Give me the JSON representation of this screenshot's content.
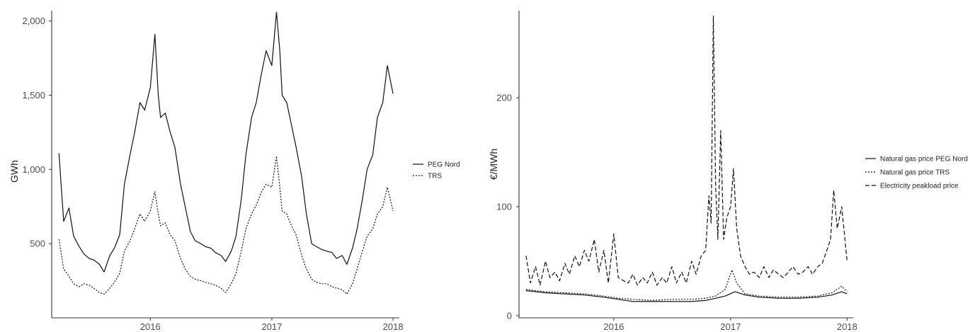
{
  "chart_data": [
    {
      "type": "line",
      "title": "",
      "xlabel": "",
      "ylabel": "GWh",
      "x_ticks": [
        "2016",
        "2017",
        "2018"
      ],
      "y_ticks": [
        "500",
        "1,000",
        "1,500",
        "2,000"
      ],
      "ylim": [
        0,
        2070
      ],
      "xlim": [
        "2015-04-01",
        "2018-01-01"
      ],
      "legend_position": "right",
      "grid": false,
      "series": [
        {
          "name": "PEG Nord",
          "line_style": "solid",
          "x": [
            "2015-04-01",
            "2015-04-15",
            "2015-05-01",
            "2015-05-15",
            "2015-06-01",
            "2015-06-15",
            "2015-07-01",
            "2015-07-15",
            "2015-08-01",
            "2015-08-15",
            "2015-09-01",
            "2015-09-15",
            "2015-10-01",
            "2015-10-15",
            "2015-11-01",
            "2015-11-15",
            "2015-12-01",
            "2015-12-15",
            "2016-01-01",
            "2016-01-15",
            "2016-01-25",
            "2016-02-01",
            "2016-02-15",
            "2016-03-01",
            "2016-03-15",
            "2016-04-01",
            "2016-04-15",
            "2016-05-01",
            "2016-05-15",
            "2016-06-01",
            "2016-06-15",
            "2016-07-01",
            "2016-07-15",
            "2016-08-01",
            "2016-08-15",
            "2016-09-01",
            "2016-09-15",
            "2016-10-01",
            "2016-10-15",
            "2016-11-01",
            "2016-11-15",
            "2016-12-01",
            "2016-12-15",
            "2017-01-01",
            "2017-01-15",
            "2017-01-25",
            "2017-02-01",
            "2017-02-15",
            "2017-03-01",
            "2017-03-15",
            "2017-04-01",
            "2017-04-15",
            "2017-05-01",
            "2017-05-15",
            "2017-06-01",
            "2017-06-15",
            "2017-07-01",
            "2017-07-15",
            "2017-08-01",
            "2017-08-15",
            "2017-09-01",
            "2017-09-15",
            "2017-10-01",
            "2017-10-15",
            "2017-11-01",
            "2017-11-15",
            "2017-12-01",
            "2017-12-15",
            "2018-01-01"
          ],
          "values": [
            1110,
            650,
            740,
            550,
            480,
            430,
            400,
            390,
            360,
            310,
            420,
            470,
            560,
            900,
            1100,
            1250,
            1450,
            1400,
            1550,
            1910,
            1500,
            1350,
            1380,
            1250,
            1150,
            900,
            750,
            580,
            520,
            500,
            480,
            470,
            440,
            420,
            380,
            450,
            550,
            800,
            1100,
            1350,
            1450,
            1650,
            1800,
            1700,
            2060,
            1800,
            1500,
            1450,
            1300,
            1150,
            950,
            700,
            500,
            480,
            460,
            450,
            440,
            400,
            420,
            360,
            470,
            600,
            800,
            1000,
            1100,
            1350,
            1450,
            1700,
            1510
          ]
        },
        {
          "name": "TRS",
          "line_style": "dotted",
          "x": [
            "2015-04-01",
            "2015-04-15",
            "2015-05-01",
            "2015-05-15",
            "2015-06-01",
            "2015-06-15",
            "2015-07-01",
            "2015-07-15",
            "2015-08-01",
            "2015-08-15",
            "2015-09-01",
            "2015-09-15",
            "2015-10-01",
            "2015-10-15",
            "2015-11-01",
            "2015-11-15",
            "2015-12-01",
            "2015-12-15",
            "2016-01-01",
            "2016-01-15",
            "2016-01-25",
            "2016-02-01",
            "2016-02-15",
            "2016-03-01",
            "2016-03-15",
            "2016-04-01",
            "2016-04-15",
            "2016-05-01",
            "2016-05-15",
            "2016-06-01",
            "2016-06-15",
            "2016-07-01",
            "2016-07-15",
            "2016-08-01",
            "2016-08-15",
            "2016-09-01",
            "2016-09-15",
            "2016-10-01",
            "2016-10-15",
            "2016-11-01",
            "2016-11-15",
            "2016-12-01",
            "2016-12-15",
            "2017-01-01",
            "2017-01-15",
            "2017-01-25",
            "2017-02-01",
            "2017-02-15",
            "2017-03-01",
            "2017-03-15",
            "2017-04-01",
            "2017-04-15",
            "2017-05-01",
            "2017-05-15",
            "2017-06-01",
            "2017-06-15",
            "2017-07-01",
            "2017-07-15",
            "2017-08-01",
            "2017-08-15",
            "2017-09-01",
            "2017-09-15",
            "2017-10-01",
            "2017-10-15",
            "2017-11-01",
            "2017-11-15",
            "2017-12-01",
            "2017-12-15",
            "2018-01-01"
          ],
          "values": [
            530,
            330,
            280,
            230,
            210,
            230,
            220,
            200,
            170,
            160,
            200,
            240,
            300,
            450,
            520,
            600,
            700,
            650,
            720,
            850,
            700,
            620,
            640,
            560,
            520,
            400,
            330,
            280,
            260,
            250,
            240,
            230,
            220,
            200,
            170,
            230,
            300,
            450,
            600,
            700,
            760,
            850,
            900,
            880,
            1090,
            880,
            720,
            700,
            620,
            560,
            420,
            330,
            260,
            240,
            230,
            230,
            210,
            200,
            190,
            160,
            230,
            330,
            450,
            550,
            600,
            700,
            750,
            880,
            720
          ]
        }
      ]
    },
    {
      "type": "line",
      "title": "",
      "xlabel": "",
      "ylabel": "€/MWh",
      "x_ticks": [
        "2016",
        "2017",
        "2018"
      ],
      "y_ticks": [
        "0",
        "100",
        "200"
      ],
      "ylim": [
        0,
        280
      ],
      "xlim": [
        "2015-04-01",
        "2018-01-01"
      ],
      "legend_position": "right",
      "grid": false,
      "series": [
        {
          "name": "Natural gas price PEG Nord",
          "line_style": "solid",
          "x": [
            "2015-04-01",
            "2015-06-01",
            "2015-08-01",
            "2015-10-01",
            "2015-12-01",
            "2016-01-15",
            "2016-03-01",
            "2016-05-01",
            "2016-07-01",
            "2016-09-01",
            "2016-10-15",
            "2016-11-15",
            "2016-12-15",
            "2017-01-15",
            "2017-02-15",
            "2017-04-01",
            "2017-06-01",
            "2017-08-01",
            "2017-10-01",
            "2017-11-15",
            "2017-12-15",
            "2018-01-01"
          ],
          "values": [
            23,
            21,
            20,
            19,
            17,
            15,
            13,
            13,
            13,
            13,
            14,
            16,
            18,
            22,
            19,
            17,
            16,
            16,
            17,
            19,
            22,
            20
          ]
        },
        {
          "name": "Natural gas price TRS",
          "line_style": "dotted",
          "x": [
            "2015-04-01",
            "2015-06-01",
            "2015-08-01",
            "2015-10-01",
            "2015-12-01",
            "2016-01-15",
            "2016-03-01",
            "2016-05-01",
            "2016-07-01",
            "2016-09-01",
            "2016-10-15",
            "2016-11-15",
            "2016-12-15",
            "2017-01-05",
            "2017-01-20",
            "2017-02-15",
            "2017-04-01",
            "2017-06-01",
            "2017-08-01",
            "2017-10-01",
            "2017-11-15",
            "2017-12-15",
            "2018-01-01"
          ],
          "values": [
            24,
            22,
            21,
            20,
            18,
            16,
            15,
            14,
            15,
            15,
            16,
            18,
            24,
            42,
            30,
            20,
            18,
            17,
            17,
            18,
            21,
            27,
            22
          ]
        },
        {
          "name": "Electricity peakload price",
          "line_style": "dashed",
          "x": [
            "2015-04-01",
            "2015-04-15",
            "2015-05-01",
            "2015-05-15",
            "2015-06-01",
            "2015-06-15",
            "2015-07-01",
            "2015-07-15",
            "2015-08-01",
            "2015-08-15",
            "2015-09-01",
            "2015-09-15",
            "2015-10-01",
            "2015-10-15",
            "2015-11-01",
            "2015-11-15",
            "2015-12-01",
            "2015-12-15",
            "2016-01-01",
            "2016-01-15",
            "2016-02-01",
            "2016-02-15",
            "2016-03-01",
            "2016-03-15",
            "2016-04-01",
            "2016-04-15",
            "2016-05-01",
            "2016-05-15",
            "2016-06-01",
            "2016-06-15",
            "2016-07-01",
            "2016-07-15",
            "2016-08-01",
            "2016-08-15",
            "2016-09-01",
            "2016-09-15",
            "2016-10-01",
            "2016-10-15",
            "2016-10-25",
            "2016-11-01",
            "2016-11-08",
            "2016-11-15",
            "2016-11-22",
            "2016-12-01",
            "2016-12-10",
            "2016-12-20",
            "2017-01-01",
            "2017-01-10",
            "2017-01-20",
            "2017-02-01",
            "2017-02-15",
            "2017-03-01",
            "2017-03-15",
            "2017-04-01",
            "2017-04-15",
            "2017-05-01",
            "2017-05-15",
            "2017-06-01",
            "2017-06-15",
            "2017-07-01",
            "2017-07-15",
            "2017-08-01",
            "2017-08-15",
            "2017-09-01",
            "2017-09-15",
            "2017-10-01",
            "2017-10-15",
            "2017-11-01",
            "2017-11-10",
            "2017-11-20",
            "2017-12-01",
            "2017-12-15",
            "2018-01-01"
          ],
          "values": [
            55,
            30,
            45,
            28,
            50,
            35,
            40,
            32,
            48,
            38,
            55,
            45,
            60,
            50,
            70,
            40,
            60,
            30,
            75,
            35,
            32,
            30,
            38,
            28,
            35,
            30,
            40,
            28,
            35,
            30,
            45,
            30,
            40,
            30,
            50,
            38,
            55,
            60,
            110,
            85,
            275,
            120,
            70,
            170,
            70,
            90,
            100,
            135,
            80,
            55,
            45,
            38,
            40,
            35,
            45,
            35,
            42,
            38,
            35,
            40,
            45,
            38,
            40,
            45,
            38,
            45,
            48,
            62,
            70,
            115,
            80,
            100,
            50
          ]
        }
      ]
    }
  ]
}
